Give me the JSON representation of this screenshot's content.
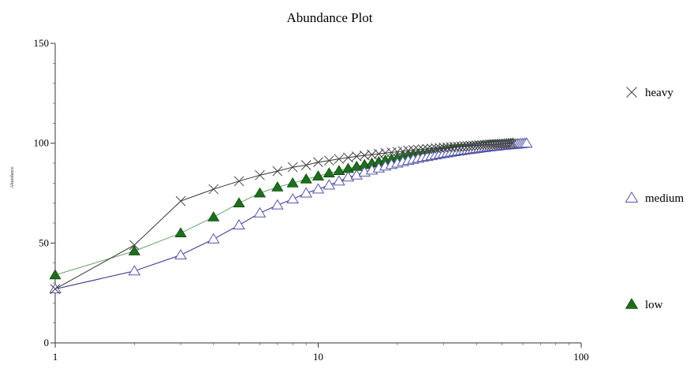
{
  "chart_data": {
    "type": "line",
    "title": "Abundance Plot",
    "xlabel": "",
    "ylabel": "Abundance",
    "x_scale": "log",
    "xlim": [
      1,
      100
    ],
    "ylim": [
      0,
      150
    ],
    "x_ticks": [
      {
        "value": 1,
        "label": "1"
      },
      {
        "value": 10,
        "label": "10"
      },
      {
        "value": 100,
        "label": "100"
      }
    ],
    "y_ticks": [
      {
        "value": 0,
        "label": "0"
      },
      {
        "value": 50,
        "label": "50"
      },
      {
        "value": 100,
        "label": "100"
      },
      {
        "value": 150,
        "label": "150"
      }
    ],
    "grid": false,
    "legend_position": "right",
    "series": [
      {
        "name": "heavy",
        "marker": "x",
        "line_color": "#333333",
        "marker_color": "#444444",
        "x": [
          1,
          2,
          3,
          4,
          5,
          6,
          7,
          8,
          9,
          10,
          11,
          12,
          13,
          14,
          15,
          16,
          17,
          18,
          19,
          20,
          21,
          22,
          23,
          24,
          25,
          26,
          27,
          28,
          29,
          30,
          31,
          32,
          33,
          34,
          35,
          36,
          37,
          38,
          39,
          40,
          41,
          42,
          43,
          44,
          45,
          46,
          47,
          48,
          49,
          50,
          51,
          52,
          53,
          54,
          55
        ],
        "y": [
          27,
          49,
          71,
          77,
          81,
          84,
          86,
          88,
          89,
          90.5,
          91.3,
          92.1,
          92.8,
          93.4,
          93.9,
          94.3,
          94.7,
          95.1,
          95.4,
          95.7,
          96.0,
          96.3,
          96.5,
          96.7,
          96.9,
          97.1,
          97.3,
          97.5,
          97.6,
          97.8,
          97.9,
          98.0,
          98.2,
          98.3,
          98.4,
          98.5,
          98.6,
          98.7,
          98.8,
          98.9,
          99.0,
          99.1,
          99.2,
          99.3,
          99.4,
          99.45,
          99.5,
          99.55,
          99.6,
          99.7,
          99.75,
          99.8,
          99.85,
          99.9,
          100
        ]
      },
      {
        "name": "medium",
        "marker": "triangle-open",
        "line_color": "#2a2a8a",
        "marker_color": "#5555aa",
        "x": [
          1,
          2,
          3,
          4,
          5,
          6,
          7,
          8,
          9,
          10,
          11,
          12,
          13,
          14,
          15,
          16,
          17,
          18,
          19,
          20,
          21,
          22,
          23,
          24,
          25,
          26,
          27,
          28,
          29,
          30,
          31,
          32,
          33,
          34,
          35,
          36,
          37,
          38,
          39,
          40,
          41,
          42,
          43,
          44,
          45,
          46,
          47,
          48,
          49,
          50,
          51,
          52,
          53,
          54,
          55,
          56,
          57,
          58,
          59,
          60,
          61,
          62
        ],
        "y": [
          27,
          36,
          44,
          52,
          59,
          65,
          69,
          72,
          75,
          77,
          79,
          81,
          83,
          84,
          85.5,
          86.5,
          87.5,
          88.5,
          89.3,
          90,
          90.7,
          91.3,
          91.9,
          92.4,
          92.9,
          93.3,
          93.7,
          94.1,
          94.5,
          94.8,
          95.1,
          95.4,
          95.7,
          96.0,
          96.2,
          96.5,
          96.7,
          96.9,
          97.1,
          97.3,
          97.5,
          97.7,
          97.8,
          98.0,
          98.1,
          98.3,
          98.4,
          98.5,
          98.7,
          98.8,
          98.9,
          99.0,
          99.1,
          99.2,
          99.3,
          99.4,
          99.5,
          99.6,
          99.7,
          99.8,
          99.9,
          100
        ]
      },
      {
        "name": "low",
        "marker": "triangle-filled",
        "line_color": "#6aa56a",
        "marker_color": "#1e6e1e",
        "x": [
          1,
          2,
          3,
          4,
          5,
          6,
          7,
          8,
          9,
          10,
          11,
          12,
          13,
          14,
          15,
          16,
          17,
          18,
          19,
          20,
          21,
          22,
          23,
          24,
          25,
          26,
          27,
          28,
          29,
          30,
          31,
          32,
          33,
          34,
          35,
          36,
          37,
          38,
          39,
          40,
          41,
          42,
          43,
          44,
          45,
          46,
          47,
          48,
          49,
          50,
          51,
          52,
          53,
          54,
          55
        ],
        "y": [
          34,
          46,
          55,
          63,
          70,
          75,
          78,
          80,
          82,
          83.5,
          85,
          86.2,
          87.3,
          88.3,
          89.2,
          90,
          90.7,
          91.4,
          92,
          92.6,
          93.1,
          93.6,
          94.0,
          94.4,
          94.8,
          95.1,
          95.4,
          95.7,
          96.0,
          96.3,
          96.5,
          96.8,
          97.0,
          97.2,
          97.4,
          97.6,
          97.8,
          98.0,
          98.1,
          98.3,
          98.4,
          98.6,
          98.7,
          98.8,
          99.0,
          99.1,
          99.2,
          99.3,
          99.4,
          99.5,
          99.6,
          99.7,
          99.8,
          99.9,
          100
        ]
      }
    ]
  }
}
